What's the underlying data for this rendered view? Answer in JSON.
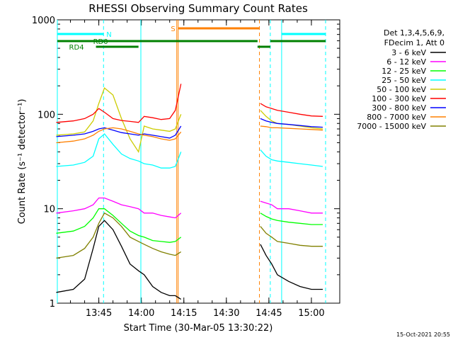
{
  "chart_data": {
    "type": "line",
    "title": "RHESSI Observing Summary Count Rates",
    "xlabel": "Start Time (30-Mar-05 13:30:22)",
    "ylabel": "Count Rate (s⁻¹ detector⁻¹)",
    "y_scale": "log",
    "ylim": [
      1,
      1000
    ],
    "xlim": [
      "13:30:22",
      "15:10:00"
    ],
    "x_ticks": [
      "13:45",
      "14:00",
      "14:15",
      "14:30",
      "14:45",
      "15:00"
    ],
    "y_ticks": [
      "1",
      "10",
      "100",
      "1000"
    ],
    "legend_position": "right",
    "legend_header": [
      "Det 1,3,4,5,6,9,",
      "FDecim 1, Att 0"
    ],
    "series": [
      {
        "name": "3 - 6 keV",
        "color": "#000000",
        "x": [
          "13:30",
          "13:36",
          "13:40",
          "13:43",
          "13:45",
          "13:47",
          "13:50",
          "13:53",
          "13:56",
          "13:59",
          "14:01",
          "14:04",
          "14:07",
          "14:10",
          "14:12",
          "14:14",
          "14:42",
          "14:44",
          "14:46",
          "14:48",
          "14:52",
          "14:56",
          "15:00",
          "15:04"
        ],
        "y": [
          1.3,
          1.4,
          1.8,
          3.8,
          6.5,
          7.5,
          6,
          4,
          2.6,
          2.2,
          2,
          1.5,
          1.3,
          1.2,
          1.2,
          1.1,
          4.2,
          3.2,
          2.6,
          2,
          1.7,
          1.5,
          1.4,
          1.4
        ]
      },
      {
        "name": "6 - 12 keV",
        "color": "#ff00ff",
        "x": [
          "13:30",
          "13:36",
          "13:40",
          "13:43",
          "13:45",
          "13:47",
          "13:50",
          "13:53",
          "13:56",
          "13:59",
          "14:01",
          "14:04",
          "14:07",
          "14:10",
          "14:12",
          "14:14",
          "14:42",
          "14:44",
          "14:46",
          "14:48",
          "14:52",
          "14:56",
          "15:00",
          "15:04"
        ],
        "y": [
          9,
          9.5,
          10,
          11,
          13,
          13,
          12,
          11,
          10.5,
          10,
          9,
          9,
          8.5,
          8.2,
          8,
          9,
          12,
          11.5,
          11,
          10,
          10,
          9.5,
          9,
          9
        ]
      },
      {
        "name": "12 - 25 keV",
        "color": "#00ff00",
        "x": [
          "13:30",
          "13:36",
          "13:40",
          "13:43",
          "13:45",
          "13:47",
          "13:50",
          "13:53",
          "13:56",
          "13:59",
          "14:01",
          "14:04",
          "14:07",
          "14:10",
          "14:12",
          "14:14",
          "14:42",
          "14:44",
          "14:46",
          "14:48",
          "14:52",
          "14:56",
          "15:00",
          "15:04"
        ],
        "y": [
          5.5,
          5.8,
          6.5,
          8,
          10,
          10,
          8.5,
          7,
          5.8,
          5.2,
          5,
          4.6,
          4.5,
          4.4,
          4.5,
          5,
          9,
          8.3,
          7.8,
          7.5,
          7.2,
          7,
          6.8,
          6.8
        ]
      },
      {
        "name": "25 - 50 keV",
        "color": "#00ffff",
        "x": [
          "13:30",
          "13:36",
          "13:40",
          "13:43",
          "13:45",
          "13:47",
          "13:50",
          "13:53",
          "13:56",
          "13:59",
          "14:01",
          "14:04",
          "14:07",
          "14:10",
          "14:12",
          "14:14",
          "14:42",
          "14:44",
          "14:46",
          "14:48",
          "14:52",
          "14:56",
          "15:00",
          "15:04"
        ],
        "y": [
          28,
          29,
          31,
          36,
          55,
          62,
          48,
          38,
          34,
          32,
          30,
          29,
          27,
          27,
          28,
          40,
          42,
          36,
          33,
          32,
          31,
          30,
          29,
          28
        ]
      },
      {
        "name": "50 - 100 keV",
        "color": "#cccc00",
        "x": [
          "13:30",
          "13:36",
          "13:40",
          "13:43",
          "13:45",
          "13:47",
          "13:50",
          "13:53",
          "13:56",
          "13:59",
          "14:01",
          "14:04",
          "14:07",
          "14:10",
          "14:12",
          "14:14",
          "14:42",
          "14:44",
          "14:46",
          "14:48",
          "14:52",
          "14:56",
          "15:00",
          "15:04"
        ],
        "y": [
          60,
          62,
          65,
          85,
          130,
          190,
          160,
          90,
          55,
          40,
          75,
          70,
          68,
          66,
          70,
          100,
          110,
          95,
          85,
          80,
          78,
          75,
          72,
          70
        ]
      },
      {
        "name": "100 - 300 keV",
        "color": "#ff0000",
        "x": [
          "13:30",
          "13:36",
          "13:40",
          "13:43",
          "13:45",
          "13:47",
          "13:50",
          "13:53",
          "13:56",
          "13:59",
          "14:01",
          "14:04",
          "14:07",
          "14:10",
          "14:12",
          "14:14",
          "14:42",
          "14:44",
          "14:46",
          "14:48",
          "14:52",
          "14:56",
          "15:00",
          "15:04"
        ],
        "y": [
          82,
          85,
          90,
          100,
          115,
          105,
          90,
          86,
          84,
          82,
          95,
          92,
          88,
          90,
          110,
          210,
          130,
          120,
          115,
          110,
          105,
          100,
          96,
          95
        ]
      },
      {
        "name": "300 - 800 keV",
        "color": "#0000ff",
        "x": [
          "13:30",
          "13:36",
          "13:40",
          "13:43",
          "13:45",
          "13:47",
          "13:50",
          "13:53",
          "13:56",
          "13:59",
          "14:01",
          "14:04",
          "14:07",
          "14:10",
          "14:12",
          "14:14",
          "14:42",
          "14:44",
          "14:46",
          "14:48",
          "14:52",
          "14:56",
          "15:00",
          "15:04"
        ],
        "y": [
          58,
          60,
          62,
          66,
          70,
          72,
          68,
          64,
          62,
          60,
          62,
          60,
          58,
          56,
          60,
          75,
          90,
          85,
          82,
          80,
          78,
          76,
          74,
          73
        ]
      },
      {
        "name": "800 - 7000 keV",
        "color": "#ff8000",
        "x": [
          "13:30",
          "13:36",
          "13:40",
          "13:43",
          "13:45",
          "13:47",
          "13:50",
          "13:53",
          "13:56",
          "13:59",
          "14:01",
          "14:04",
          "14:07",
          "14:10",
          "14:12",
          "14:14",
          "14:42",
          "14:44",
          "14:46",
          "14:48",
          "14:52",
          "14:56",
          "15:00",
          "15:04"
        ],
        "y": [
          50,
          52,
          55,
          60,
          66,
          70,
          72,
          70,
          66,
          62,
          60,
          58,
          55,
          53,
          55,
          65,
          75,
          74,
          72,
          72,
          71,
          70,
          69,
          68
        ]
      },
      {
        "name": "7000 - 15000 keV",
        "color": "#808000",
        "x": [
          "13:30",
          "13:36",
          "13:40",
          "13:43",
          "13:45",
          "13:47",
          "13:50",
          "13:53",
          "13:56",
          "13:59",
          "14:01",
          "14:04",
          "14:07",
          "14:10",
          "14:12",
          "14:14",
          "14:42",
          "14:44",
          "14:46",
          "14:48",
          "14:52",
          "14:56",
          "15:00",
          "15:04"
        ],
        "y": [
          3.0,
          3.2,
          3.8,
          5,
          7,
          9,
          8,
          6.5,
          5,
          4.5,
          4.2,
          3.8,
          3.5,
          3.3,
          3.2,
          3.5,
          6.5,
          5.5,
          5,
          4.5,
          4.3,
          4.1,
          4,
          4
        ]
      }
    ],
    "vertical_markers": [
      {
        "time": "13:30:22",
        "color": "#00ffff",
        "style": "solid"
      },
      {
        "time": "13:46:40",
        "color": "#00ffff",
        "style": "dashed"
      },
      {
        "time": "13:59:50",
        "color": "#00ffff",
        "style": "solid"
      },
      {
        "time": "14:12:30",
        "color": "#ff8000",
        "style": "solid"
      },
      {
        "time": "14:13:00",
        "color": "#ff8000",
        "style": "solid"
      },
      {
        "time": "14:41:40",
        "color": "#ff8000",
        "style": "dashed"
      },
      {
        "time": "14:45:30",
        "color": "#00ffff",
        "style": "dashed"
      },
      {
        "time": "14:49:30",
        "color": "#00ffff",
        "style": "solid"
      },
      {
        "time": "15:05:00",
        "color": "#00ffff",
        "style": "dashed"
      }
    ],
    "flag_bars": [
      {
        "label": "N",
        "color": "#00ffff",
        "segments": [
          [
            "13:30:22",
            "13:46:40"
          ],
          [
            "14:49:30",
            "15:05:00"
          ]
        ],
        "level": 1
      },
      {
        "label": "S",
        "color": "#ff8000",
        "segments": [
          [
            "14:13:00",
            "14:41:40"
          ]
        ],
        "level": 0
      },
      {
        "label": "RD0",
        "color": "#008000",
        "segments": [
          [
            "13:30:22",
            "14:41:00"
          ],
          [
            "14:45:30",
            "15:05:00"
          ]
        ],
        "level": 2
      },
      {
        "label": "RD4",
        "color": "#008000",
        "segments": [
          [
            "13:44:00",
            "13:59:00"
          ],
          [
            "14:41:00",
            "14:45:30"
          ]
        ],
        "level": 3
      }
    ]
  },
  "footer": {
    "timestamp": "15-Oct-2021 20:55"
  }
}
